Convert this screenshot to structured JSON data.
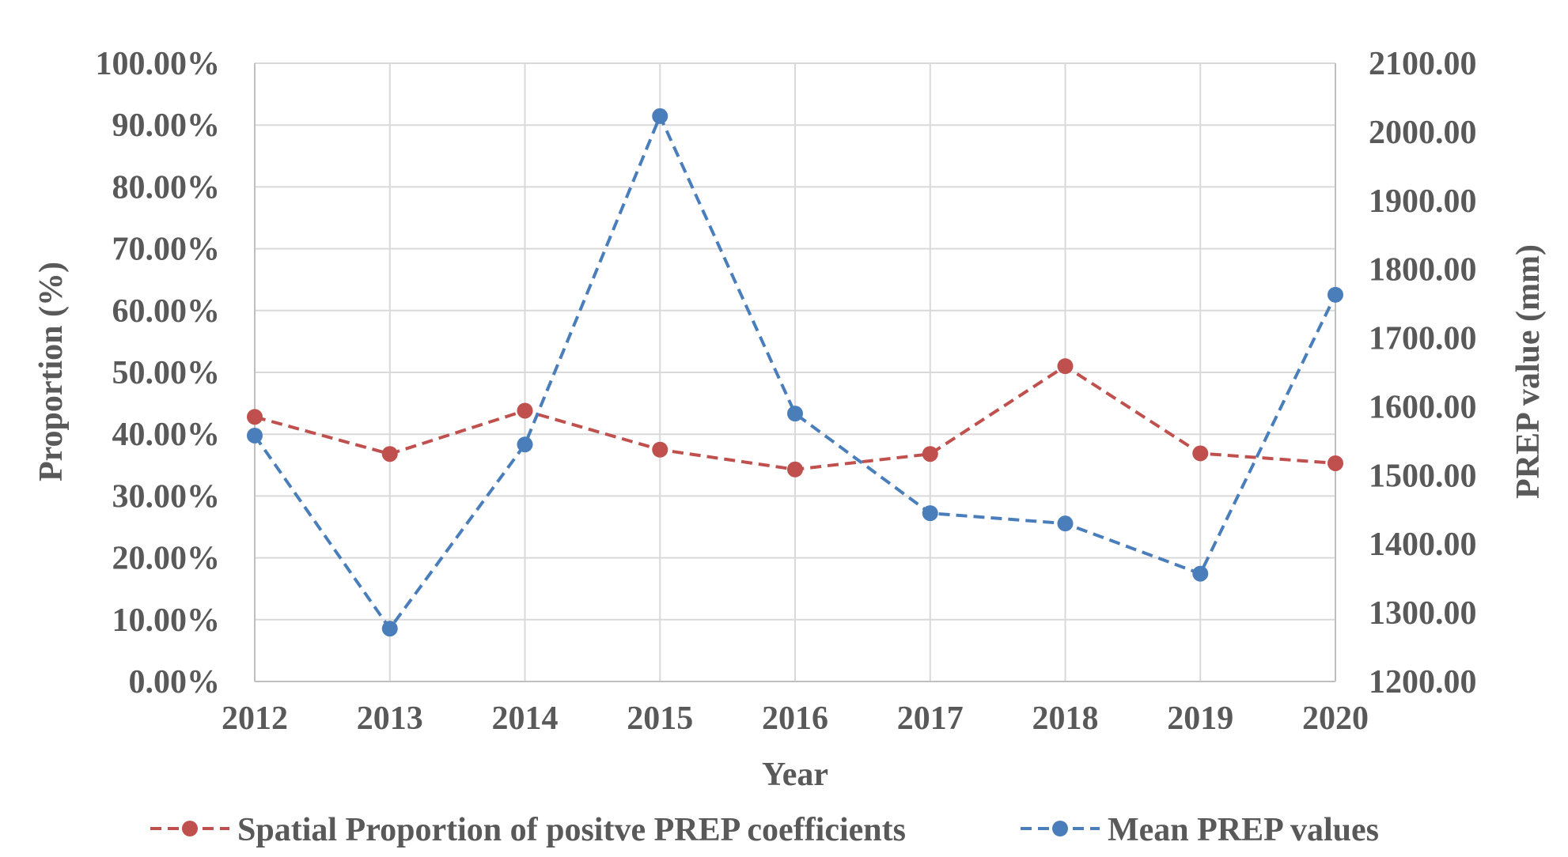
{
  "chart_data": {
    "type": "line",
    "title": "",
    "xlabel": "Year",
    "ylabel": "Proportion (%)",
    "y2label": "PREP value (mm)",
    "categories": [
      "2012",
      "2013",
      "2014",
      "2015",
      "2016",
      "2017",
      "2018",
      "2019",
      "2020"
    ],
    "ylim": [
      0,
      100
    ],
    "y2lim": [
      1200,
      2100
    ],
    "yticks": [
      0,
      10,
      20,
      30,
      40,
      50,
      60,
      70,
      80,
      90,
      100
    ],
    "ytick_labels": [
      "0.00%",
      "10.00%",
      "20.00%",
      "30.00%",
      "40.00%",
      "50.00%",
      "60.00%",
      "70.00%",
      "80.00%",
      "90.00%",
      "100.00%"
    ],
    "y2ticks": [
      1200,
      1300,
      1400,
      1500,
      1600,
      1700,
      1800,
      1900,
      2000,
      2100
    ],
    "y2tick_labels": [
      "1200.00",
      "1300.00",
      "1400.00",
      "1500.00",
      "1600.00",
      "1700.00",
      "1800.00",
      "1900.00",
      "2000.00",
      "2100.00"
    ],
    "grid": true,
    "legend_position": "bottom",
    "series": [
      {
        "name": "Spatial Proportion of positve PREP coefficients",
        "axis": "left",
        "color": "#c0504d",
        "values": [
          42.8,
          36.8,
          43.8,
          37.5,
          34.3,
          36.8,
          51.0,
          36.9,
          35.3
        ]
      },
      {
        "name": "Mean PREP values",
        "axis": "right",
        "color": "#4a7ebb",
        "values": [
          1558,
          1277,
          1545,
          2023,
          1590,
          1445,
          1430,
          1357,
          1763
        ]
      }
    ]
  }
}
